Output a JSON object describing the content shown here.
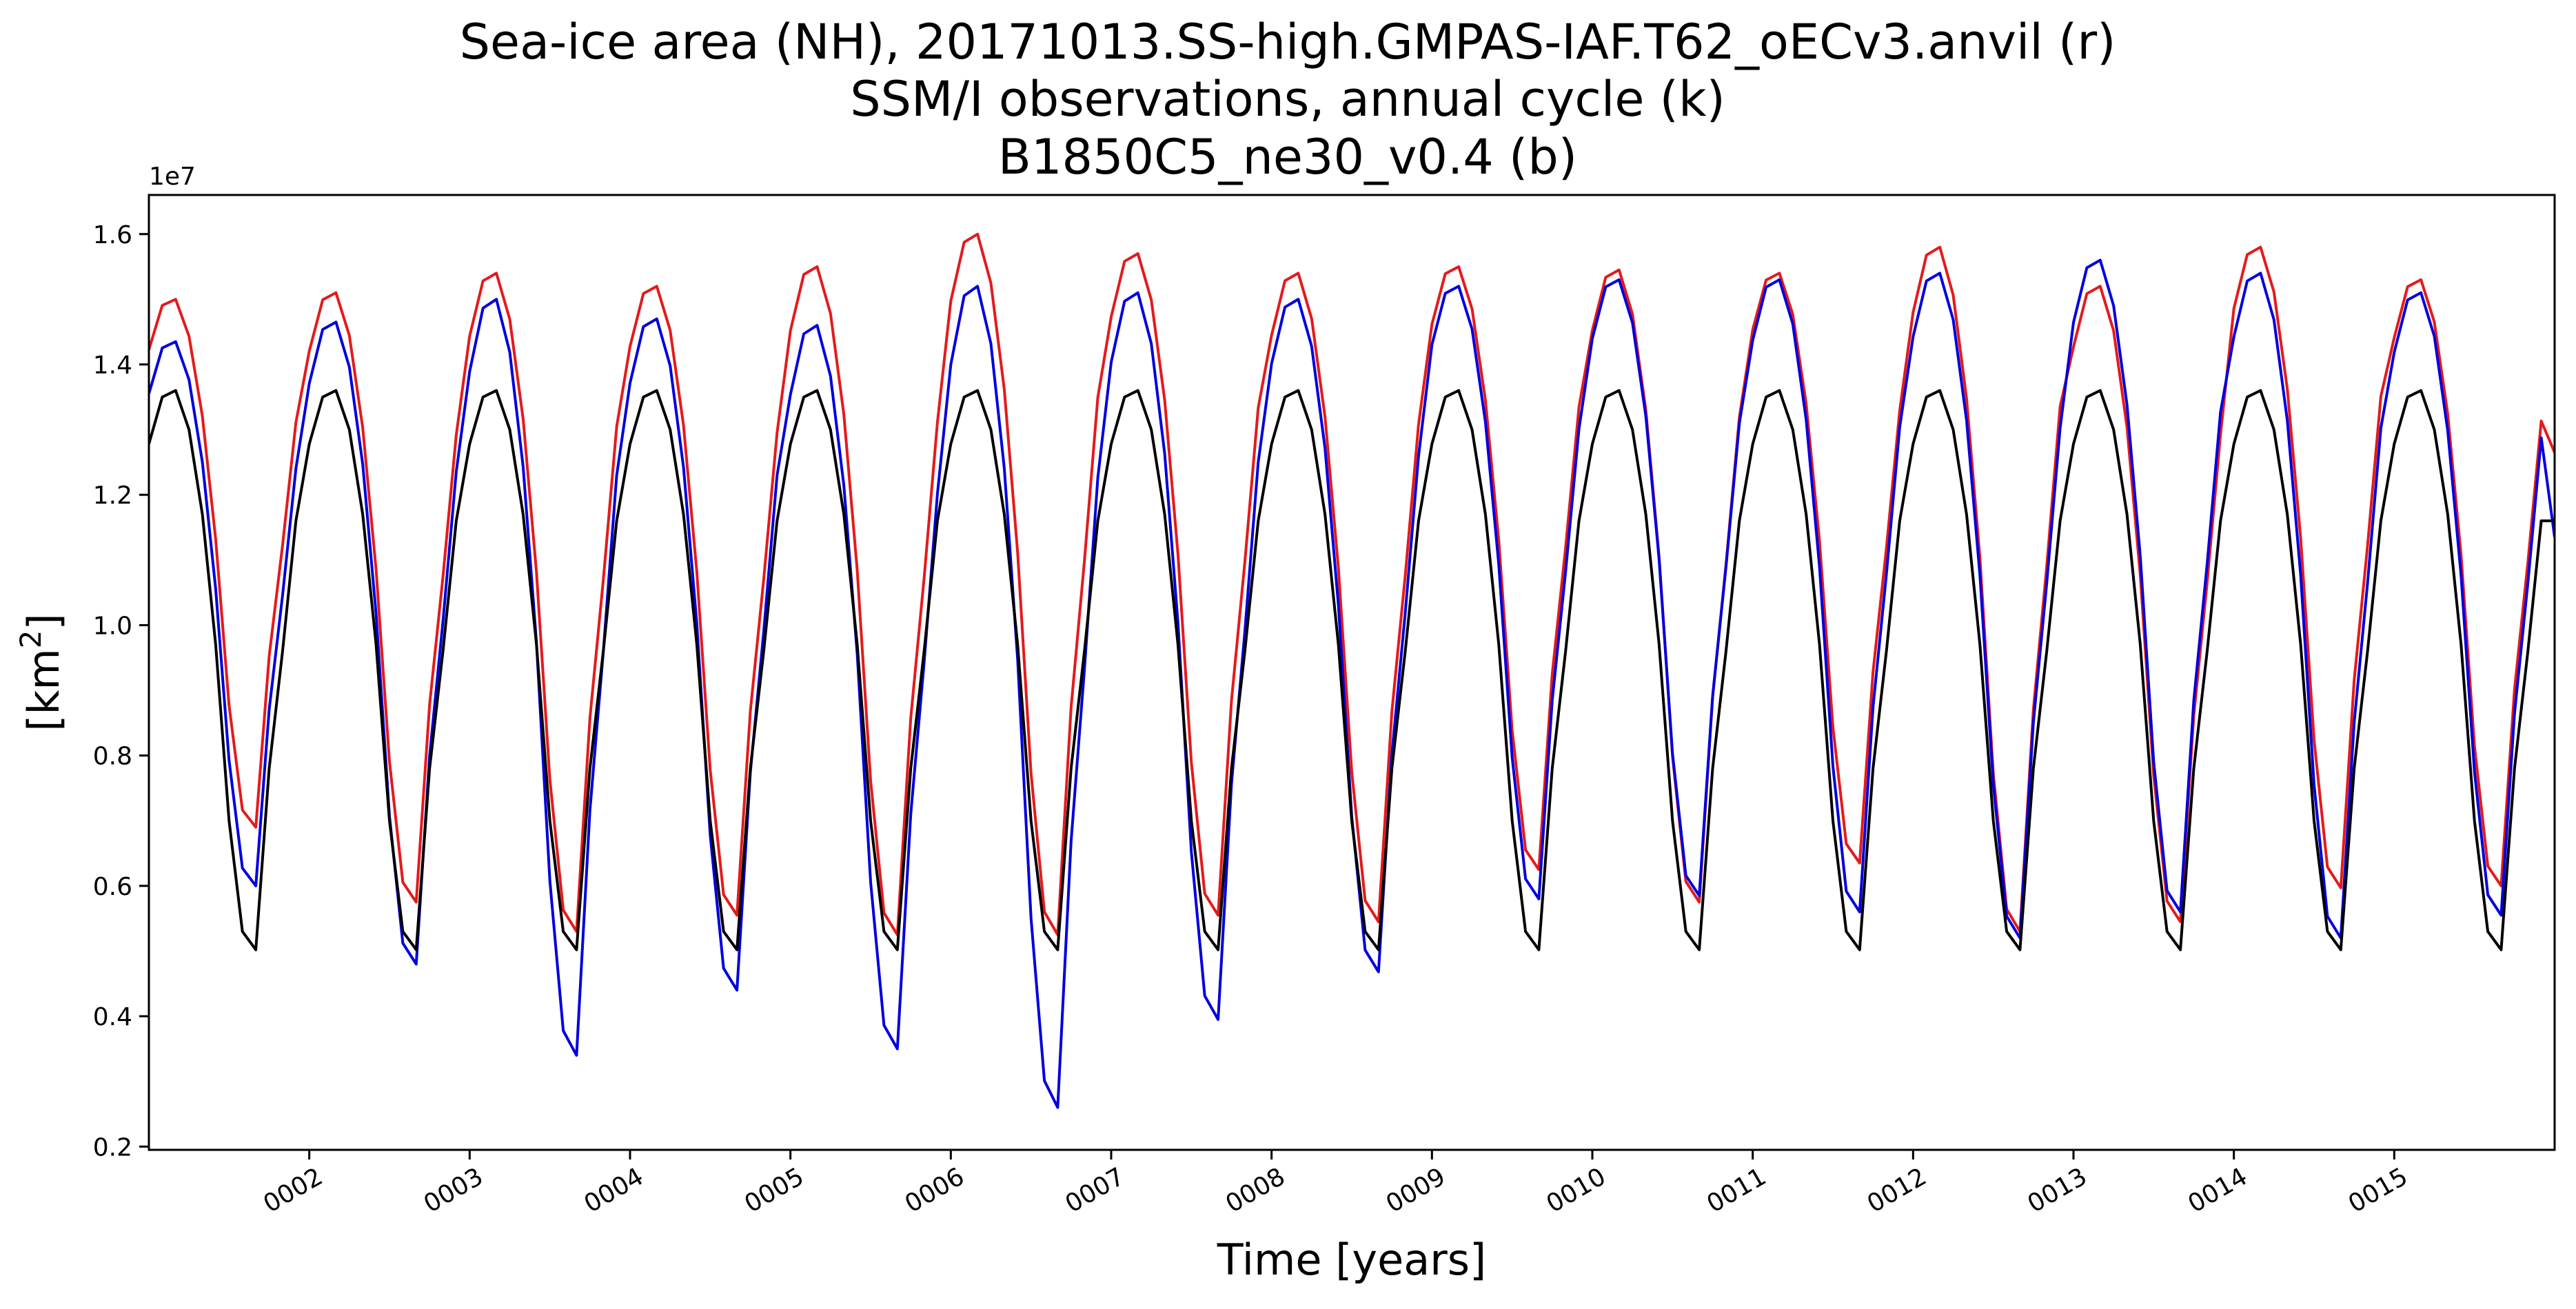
{
  "chart_data": {
    "type": "line",
    "title_lines": [
      "Sea-ice area (NH), 20171013.SS-high.GMPAS-IAF.T62_oECv3.anvil (r)",
      "SSM/I observations, annual cycle (k)",
      "B1850C5_ne30_v0.4 (b)"
    ],
    "xlabel": "Time [years]",
    "ylabel_base": "[km",
    "ylabel_sup": "2",
    "ylabel_end": "]",
    "y_offset_label": "1e7",
    "xlim": [
      1.0,
      16.0
    ],
    "ylim": [
      0.195,
      1.66
    ],
    "yticks": [
      0.2,
      0.4,
      0.6,
      0.8,
      1.0,
      1.2,
      1.4,
      1.6
    ],
    "ytick_labels": [
      "0.2",
      "0.4",
      "0.6",
      "0.8",
      "1.0",
      "1.2",
      "1.4",
      "1.6"
    ],
    "xticks": [
      2,
      3,
      4,
      5,
      6,
      7,
      8,
      9,
      10,
      11,
      12,
      13,
      14,
      15
    ],
    "xtick_labels": [
      "0002",
      "0003",
      "0004",
      "0005",
      "0006",
      "0007",
      "0008",
      "0009",
      "0010",
      "0011",
      "0012",
      "0013",
      "0014",
      "0015"
    ],
    "climatology_k": [
      1.278,
      1.35,
      1.36,
      1.3,
      1.17,
      0.97,
      0.7,
      0.53,
      0.502,
      0.78,
      0.96,
      1.16
    ],
    "series": [
      {
        "key": "r",
        "color": "#e41a1c",
        "years": [
          {
            "max": 1.5,
            "min": 0.69
          },
          {
            "max": 1.51,
            "min": 0.575
          },
          {
            "max": 1.54,
            "min": 0.53
          },
          {
            "max": 1.52,
            "min": 0.555
          },
          {
            "max": 1.55,
            "min": 0.525
          },
          {
            "max": 1.6,
            "min": 0.525
          },
          {
            "max": 1.57,
            "min": 0.555
          },
          {
            "max": 1.54,
            "min": 0.545
          },
          {
            "max": 1.55,
            "min": 0.625
          },
          {
            "max": 1.545,
            "min": 0.575
          },
          {
            "max": 1.54,
            "min": 0.635
          },
          {
            "max": 1.58,
            "min": 0.53
          },
          {
            "max": 1.52,
            "min": 0.545
          },
          {
            "max": 1.58,
            "min": 0.597
          },
          {
            "max": 1.53,
            "min": 0.6
          }
        ],
        "end_value": 1.265
      },
      {
        "key": "b",
        "color": "#0000dd",
        "years": [
          {
            "max": 1.435,
            "min": 0.6
          },
          {
            "max": 1.465,
            "min": 0.48
          },
          {
            "max": 1.5,
            "min": 0.34
          },
          {
            "max": 1.47,
            "min": 0.44
          },
          {
            "max": 1.46,
            "min": 0.35
          },
          {
            "max": 1.52,
            "min": 0.26
          },
          {
            "max": 1.51,
            "min": 0.395
          },
          {
            "max": 1.5,
            "min": 0.468
          },
          {
            "max": 1.52,
            "min": 0.58
          },
          {
            "max": 1.53,
            "min": 0.585
          },
          {
            "max": 1.53,
            "min": 0.56
          },
          {
            "max": 1.54,
            "min": 0.52
          },
          {
            "max": 1.56,
            "min": 0.56
          },
          {
            "max": 1.54,
            "min": 0.52
          },
          {
            "max": 1.51,
            "min": 0.555
          }
        ],
        "end_value": 1.135
      },
      {
        "key": "k",
        "color": "#000000"
      }
    ]
  }
}
